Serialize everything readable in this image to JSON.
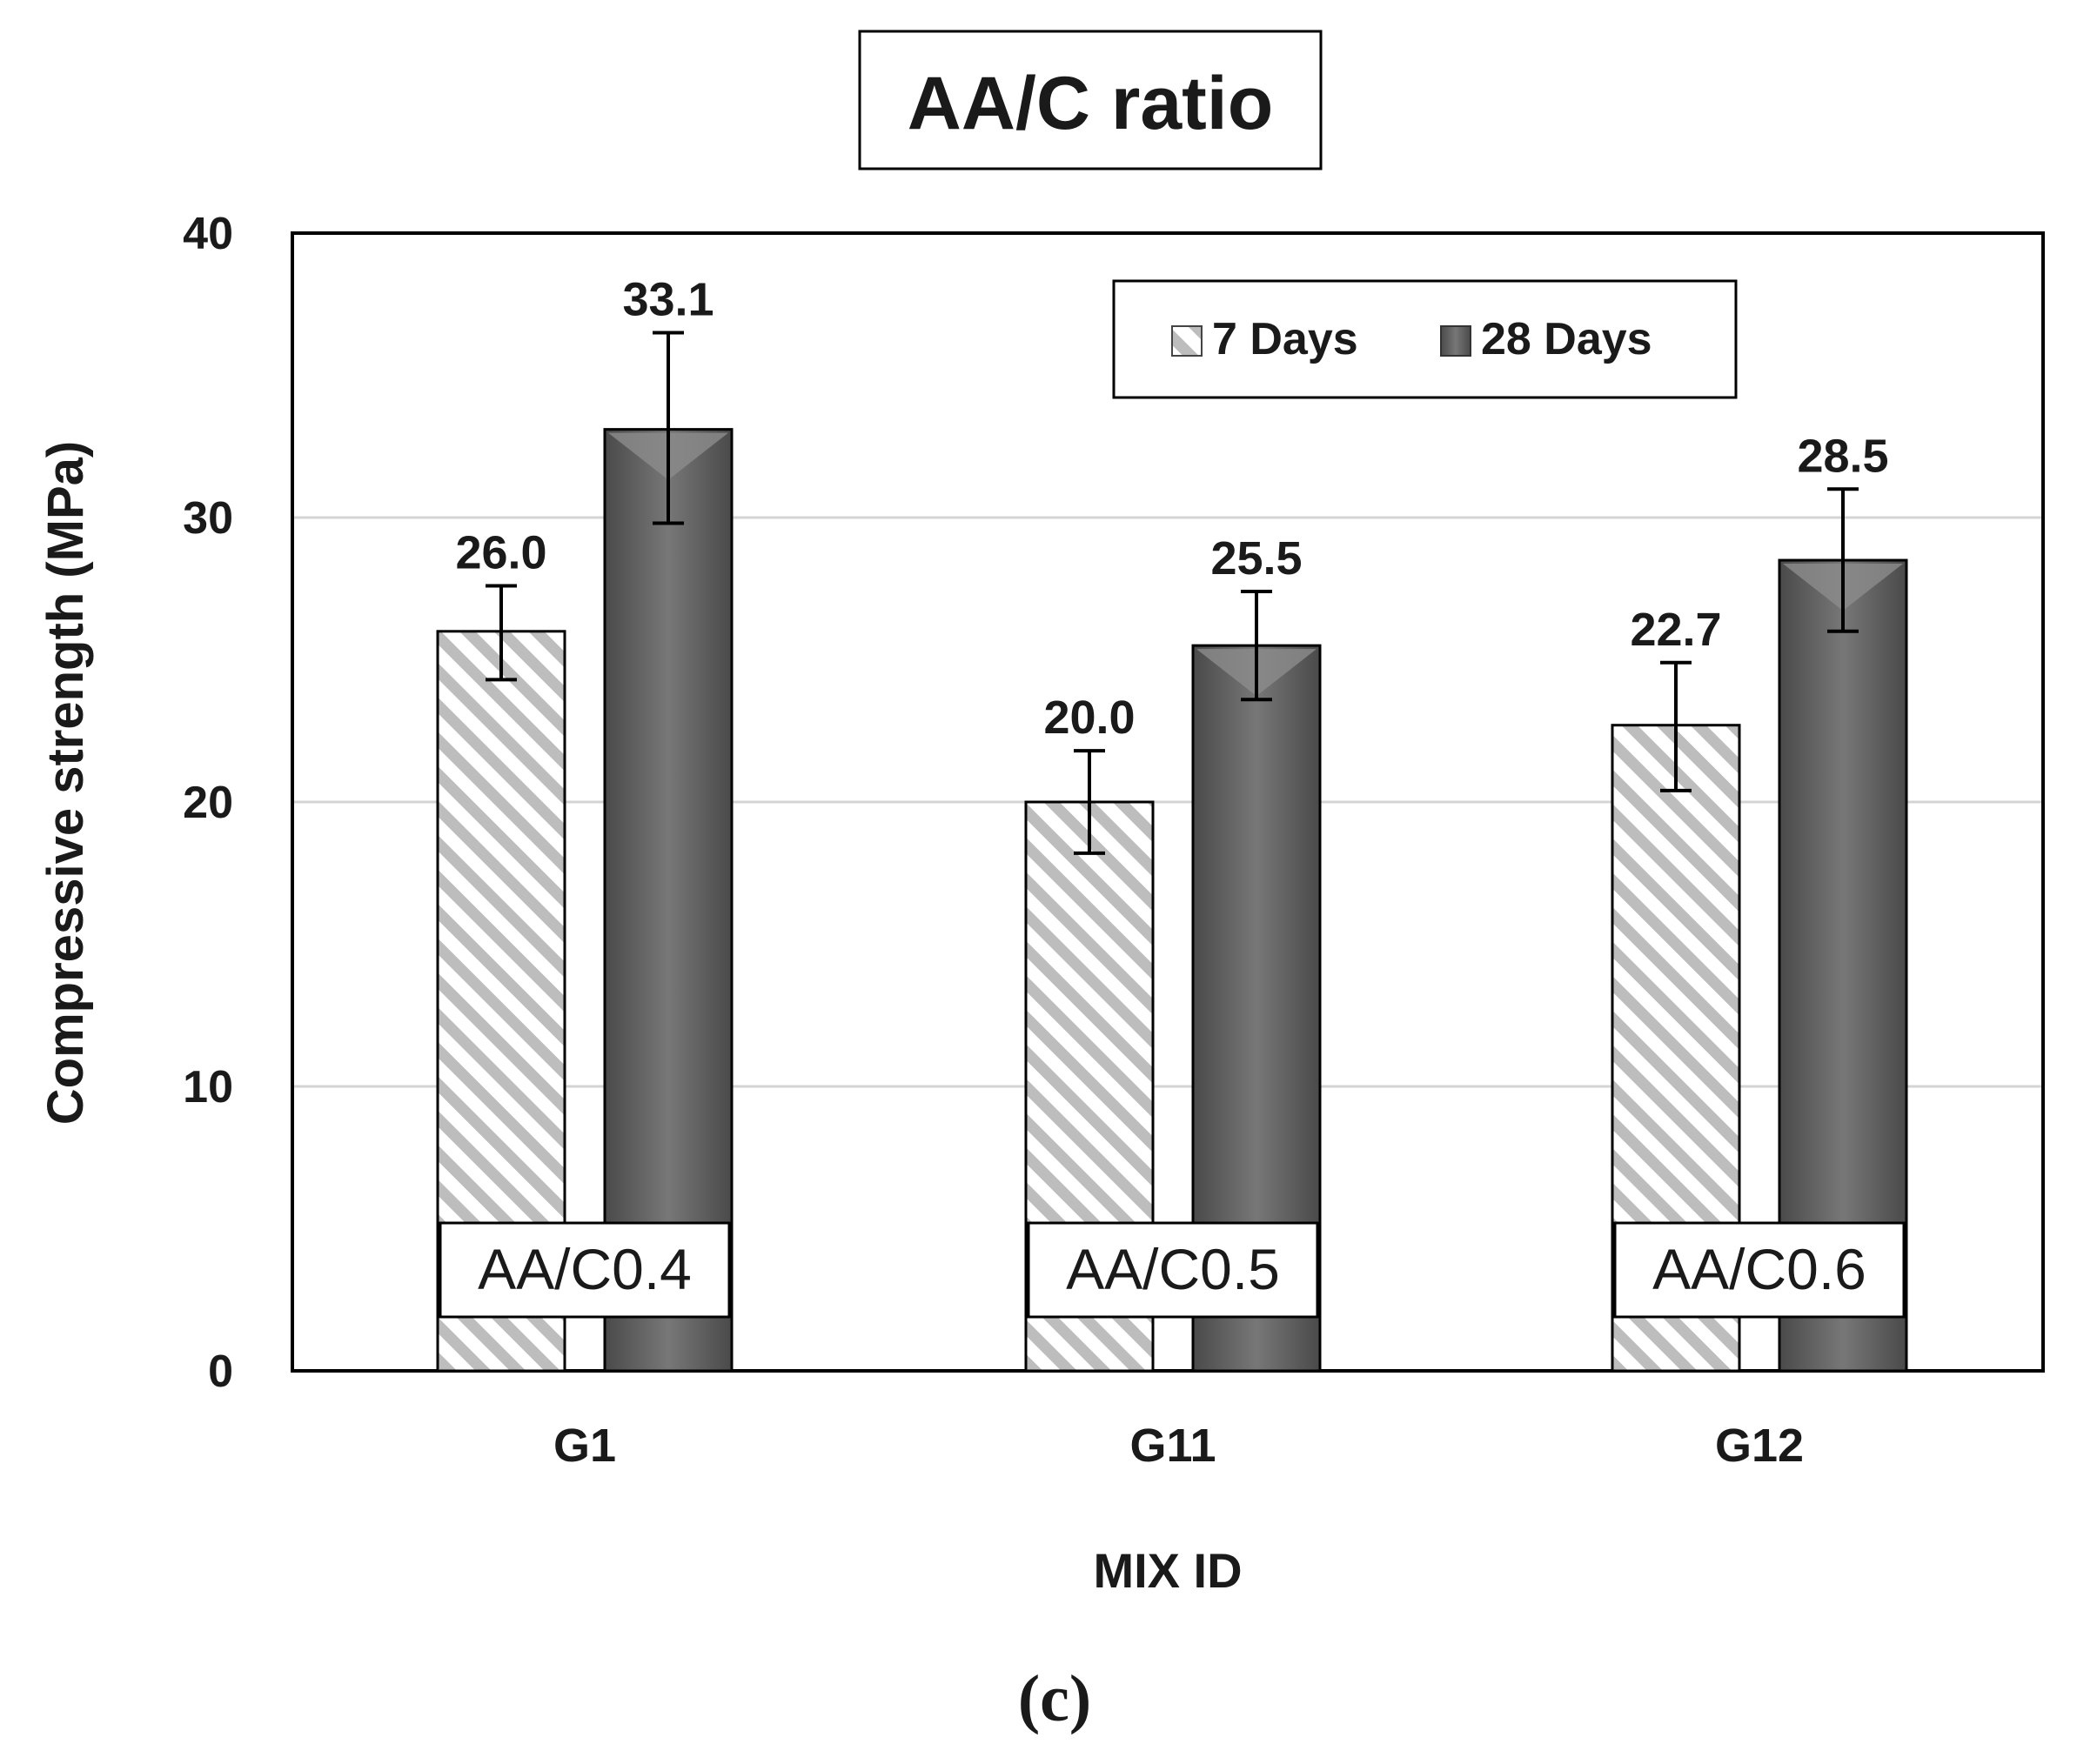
{
  "chart_data": {
    "type": "bar",
    "title": "AA/C ratio",
    "xlabel": "MIX ID",
    "ylabel": "Compressive strength (MPa)",
    "categories": [
      "G1",
      "G11",
      "G12"
    ],
    "group_labels": [
      "AA/C0.4",
      "AA/C0.5",
      "AA/C0.6"
    ],
    "series": [
      {
        "name": "7 Days",
        "values": [
          26.0,
          20.0,
          22.7
        ],
        "error_low": [
          24.3,
          18.2,
          20.4
        ],
        "error_high": [
          27.6,
          21.8,
          24.9
        ],
        "labels": [
          "26.0",
          "20.0",
          "22.7"
        ]
      },
      {
        "name": "28 Days",
        "values": [
          33.1,
          25.5,
          28.5
        ],
        "error_low": [
          29.8,
          23.6,
          26.0
        ],
        "error_high": [
          36.5,
          27.4,
          31.0
        ],
        "labels": [
          "33.1",
          "25.5",
          "28.5"
        ]
      }
    ],
    "ylim": [
      0,
      40
    ],
    "yticks": [
      "0",
      "10",
      "20",
      "30",
      "40"
    ],
    "ytick_values": [
      0,
      10,
      20,
      30,
      40
    ],
    "grid": true,
    "legend_position": "top-right",
    "caption": "(c)"
  },
  "colors": {
    "bar_7_stripe": "#bdbdbd",
    "bar_28_dark": "#5f5f5f",
    "bar_28_light": "#8c8c8c",
    "grid": "#d4d4d4",
    "text": "#1a1a1a"
  }
}
